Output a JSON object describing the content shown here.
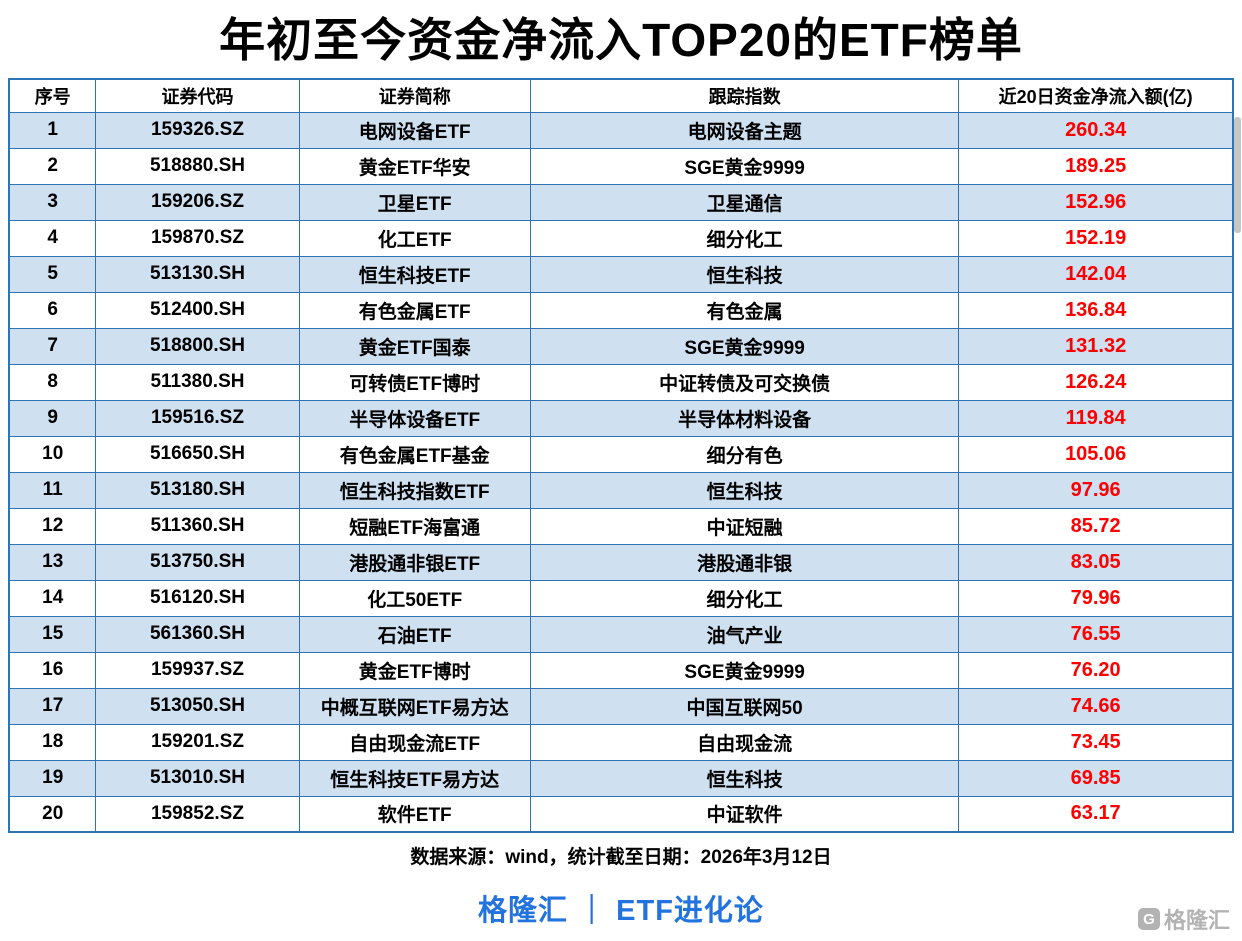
{
  "title": "年初至今资金净流入TOP20的ETF榜单",
  "chart_data": {
    "type": "table",
    "title": "年初至今资金净流入TOP20的ETF榜单",
    "columns": [
      "序号",
      "证券代码",
      "证券简称",
      "跟踪指数",
      "近20日资金净流入额(亿)"
    ],
    "rows": [
      [
        "1",
        "159326.SZ",
        "电网设备ETF",
        "电网设备主题",
        "260.34"
      ],
      [
        "2",
        "518880.SH",
        "黄金ETF华安",
        "SGE黄金9999",
        "189.25"
      ],
      [
        "3",
        "159206.SZ",
        "卫星ETF",
        "卫星通信",
        "152.96"
      ],
      [
        "4",
        "159870.SZ",
        "化工ETF",
        "细分化工",
        "152.19"
      ],
      [
        "5",
        "513130.SH",
        "恒生科技ETF",
        "恒生科技",
        "142.04"
      ],
      [
        "6",
        "512400.SH",
        "有色金属ETF",
        "有色金属",
        "136.84"
      ],
      [
        "7",
        "518800.SH",
        "黄金ETF国泰",
        "SGE黄金9999",
        "131.32"
      ],
      [
        "8",
        "511380.SH",
        "可转债ETF博时",
        "中证转债及可交换债",
        "126.24"
      ],
      [
        "9",
        "159516.SZ",
        "半导体设备ETF",
        "半导体材料设备",
        "119.84"
      ],
      [
        "10",
        "516650.SH",
        "有色金属ETF基金",
        "细分有色",
        "105.06"
      ],
      [
        "11",
        "513180.SH",
        "恒生科技指数ETF",
        "恒生科技",
        "97.96"
      ],
      [
        "12",
        "511360.SH",
        "短融ETF海富通",
        "中证短融",
        "85.72"
      ],
      [
        "13",
        "513750.SH",
        "港股通非银ETF",
        "港股通非银",
        "83.05"
      ],
      [
        "14",
        "516120.SH",
        "化工50ETF",
        "细分化工",
        "79.96"
      ],
      [
        "15",
        "561360.SH",
        "石油ETF",
        "油气产业",
        "76.55"
      ],
      [
        "16",
        "159937.SZ",
        "黄金ETF博时",
        "SGE黄金9999",
        "76.20"
      ],
      [
        "17",
        "513050.SH",
        "中概互联网ETF易方达",
        "中国互联网50",
        "74.66"
      ],
      [
        "18",
        "159201.SZ",
        "自由现金流ETF",
        "自由现金流",
        "73.45"
      ],
      [
        "19",
        "513010.SH",
        "恒生科技ETF易方达",
        "恒生科技",
        "69.85"
      ],
      [
        "20",
        "159852.SZ",
        "软件ETF",
        "中证软件",
        "63.17"
      ]
    ],
    "value_column_index": 4,
    "legend_position": "none",
    "grid": true
  },
  "footer": {
    "source": "数据来源：wind，统计截至日期：2026年3月12日",
    "brand": "格隆汇 ｜ ETF进化论",
    "watermark": "格隆汇",
    "watermark_logo_glyph": "G"
  },
  "colors": {
    "border_blue": "#2e74b5",
    "row_alt": "#cfe0f1",
    "value_red": "#ff0000",
    "brand_blue": "#2273dd",
    "watermark_gray": "#b3b3b3"
  }
}
